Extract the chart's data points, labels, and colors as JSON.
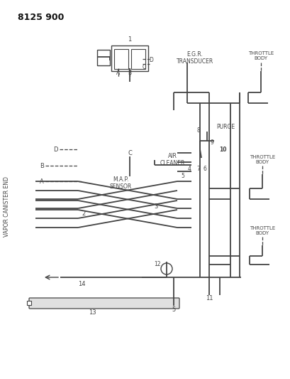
{
  "bg_color": "#ffffff",
  "line_color": "#444444",
  "lw": 1.3,
  "title": "8125 900",
  "egr_label": "E.G.R.\nTRANSDUCER",
  "throttle_body": "THROTTLE\nBODY",
  "purge_label": "PURGE",
  "air_cleaner_label": "AIR\nCLEANER",
  "map_sensor_label": "M.A.P.\nSENSOR",
  "vapor_label": "VAPOR CANISTER END"
}
